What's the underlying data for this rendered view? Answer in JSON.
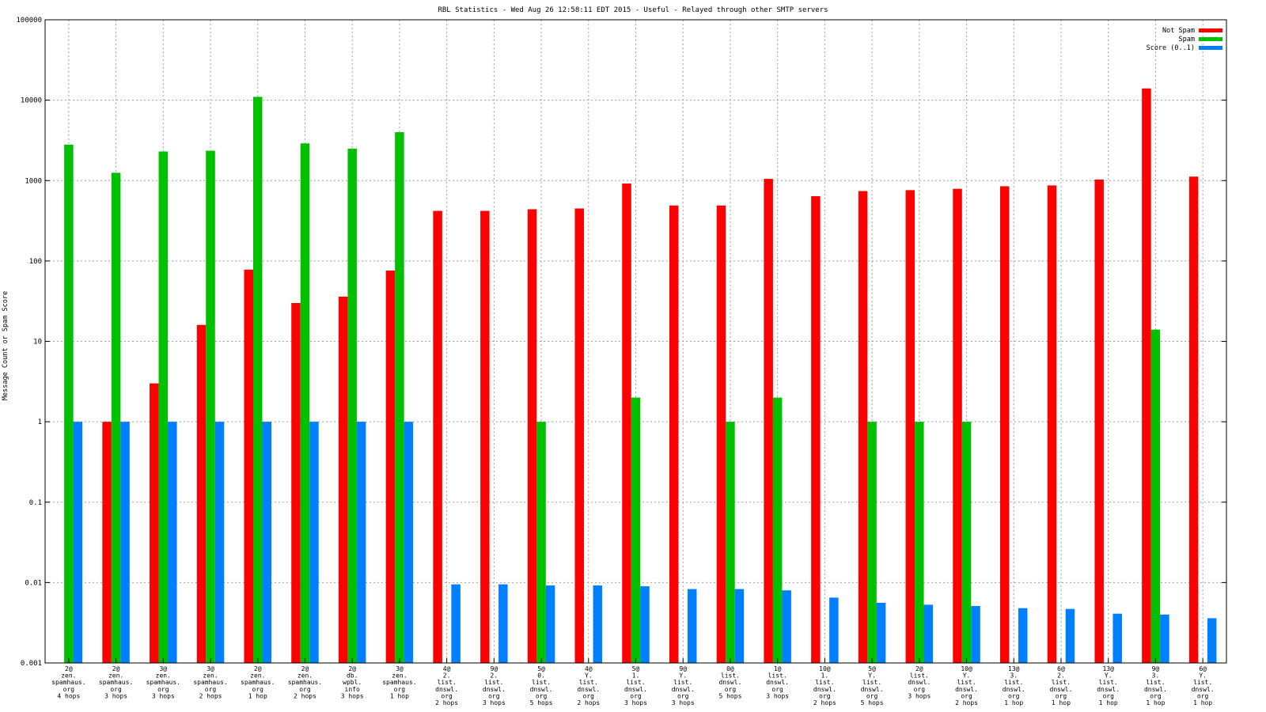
{
  "chart_data": {
    "type": "bar",
    "title": "RBL Statistics - Wed Aug 26 12:58:11 EDT 2015 - Useful - Relayed through other SMTP servers",
    "xlabel": "",
    "ylabel": "Message Count or Spam Score",
    "yscale": "log",
    "ylim": [
      0.001,
      100000
    ],
    "yticks": [
      "0.001",
      "0.01",
      "0.1",
      "1",
      "10",
      "100",
      "1000",
      "10000",
      "100000"
    ],
    "grid": true,
    "legend_position": "top-right",
    "categories": [
      [
        "2@",
        "zen.",
        "spamhaus.",
        "org",
        "4 hops"
      ],
      [
        "2@",
        "zen.",
        "spamhaus.",
        "org",
        "3 hops"
      ],
      [
        "3@",
        "zen.",
        "spamhaus.",
        "org",
        "3 hops"
      ],
      [
        "3@",
        "zen.",
        "spamhaus.",
        "org",
        "2 hops"
      ],
      [
        "2@",
        "zen.",
        "spamhaus.",
        "org",
        "1 hop"
      ],
      [
        "2@",
        "zen.",
        "spamhaus.",
        "org",
        "2 hops"
      ],
      [
        "2@",
        "db.",
        "wpbl.",
        "info",
        "3 hops"
      ],
      [
        "3@",
        "zen.",
        "spamhaus.",
        "org",
        "1 hop"
      ],
      [
        "4@",
        "2.",
        "list.",
        "dnswl.",
        "org",
        "2 hops"
      ],
      [
        "9@",
        "2.",
        "list.",
        "dnswl.",
        "org",
        "3 hops"
      ],
      [
        "5@",
        "0.",
        "list.",
        "dnswl.",
        "org",
        "5 hops"
      ],
      [
        "4@",
        "Y.",
        "list.",
        "dnswl.",
        "org",
        "2 hops"
      ],
      [
        "5@",
        "1.",
        "list.",
        "dnswl.",
        "org",
        "3 hops"
      ],
      [
        "9@",
        "Y.",
        "list.",
        "dnswl.",
        "org",
        "3 hops"
      ],
      [
        "0@",
        "list.",
        "dnswl.",
        "org",
        "5 hops"
      ],
      [
        "1@",
        "list.",
        "dnswl.",
        "org",
        "3 hops"
      ],
      [
        "10@",
        "1.",
        "list.",
        "dnswl.",
        "org",
        "2 hops"
      ],
      [
        "5@",
        "Y.",
        "list.",
        "dnswl.",
        "org",
        "5 hops"
      ],
      [
        "2@",
        "list.",
        "dnswl.",
        "org",
        "3 hops"
      ],
      [
        "10@",
        "Y.",
        "list.",
        "dnswl.",
        "org",
        "2 hops"
      ],
      [
        "13@",
        "3.",
        "list.",
        "dnswl.",
        "org",
        "1 hop"
      ],
      [
        "6@",
        "2.",
        "list.",
        "dnswl.",
        "org",
        "1 hop"
      ],
      [
        "13@",
        "Y.",
        "list.",
        "dnswl.",
        "org",
        "1 hop"
      ],
      [
        "9@",
        "3.",
        "list.",
        "dnswl.",
        "org",
        "1 hop"
      ],
      [
        "6@",
        "Y.",
        "list.",
        "dnswl.",
        "org",
        "1 hop"
      ]
    ],
    "series": [
      {
        "name": "Not Spam",
        "color": "#ff0000",
        "values": [
          null,
          1,
          3,
          16,
          78,
          30,
          36,
          76,
          420,
          420,
          440,
          450,
          920,
          490,
          490,
          1050,
          640,
          740,
          760,
          790,
          850,
          870,
          1030,
          14000,
          1120
        ]
      },
      {
        "name": "Spam",
        "color": "#00c000",
        "values": [
          2800,
          1250,
          2300,
          2350,
          11000,
          2900,
          2500,
          4000,
          null,
          null,
          1,
          null,
          2,
          null,
          1,
          2,
          null,
          1,
          1,
          1,
          null,
          null,
          null,
          14,
          null
        ]
      },
      {
        "name": "Score (0..1)",
        "color": "#0080ff",
        "values": [
          1,
          1,
          1,
          1,
          1,
          1,
          1,
          1,
          0.0095,
          0.0095,
          0.0092,
          0.0092,
          0.009,
          0.0083,
          0.0083,
          0.008,
          0.0065,
          0.0056,
          0.0053,
          0.0051,
          0.0048,
          0.0047,
          0.0041,
          0.004,
          0.0036
        ]
      }
    ]
  }
}
